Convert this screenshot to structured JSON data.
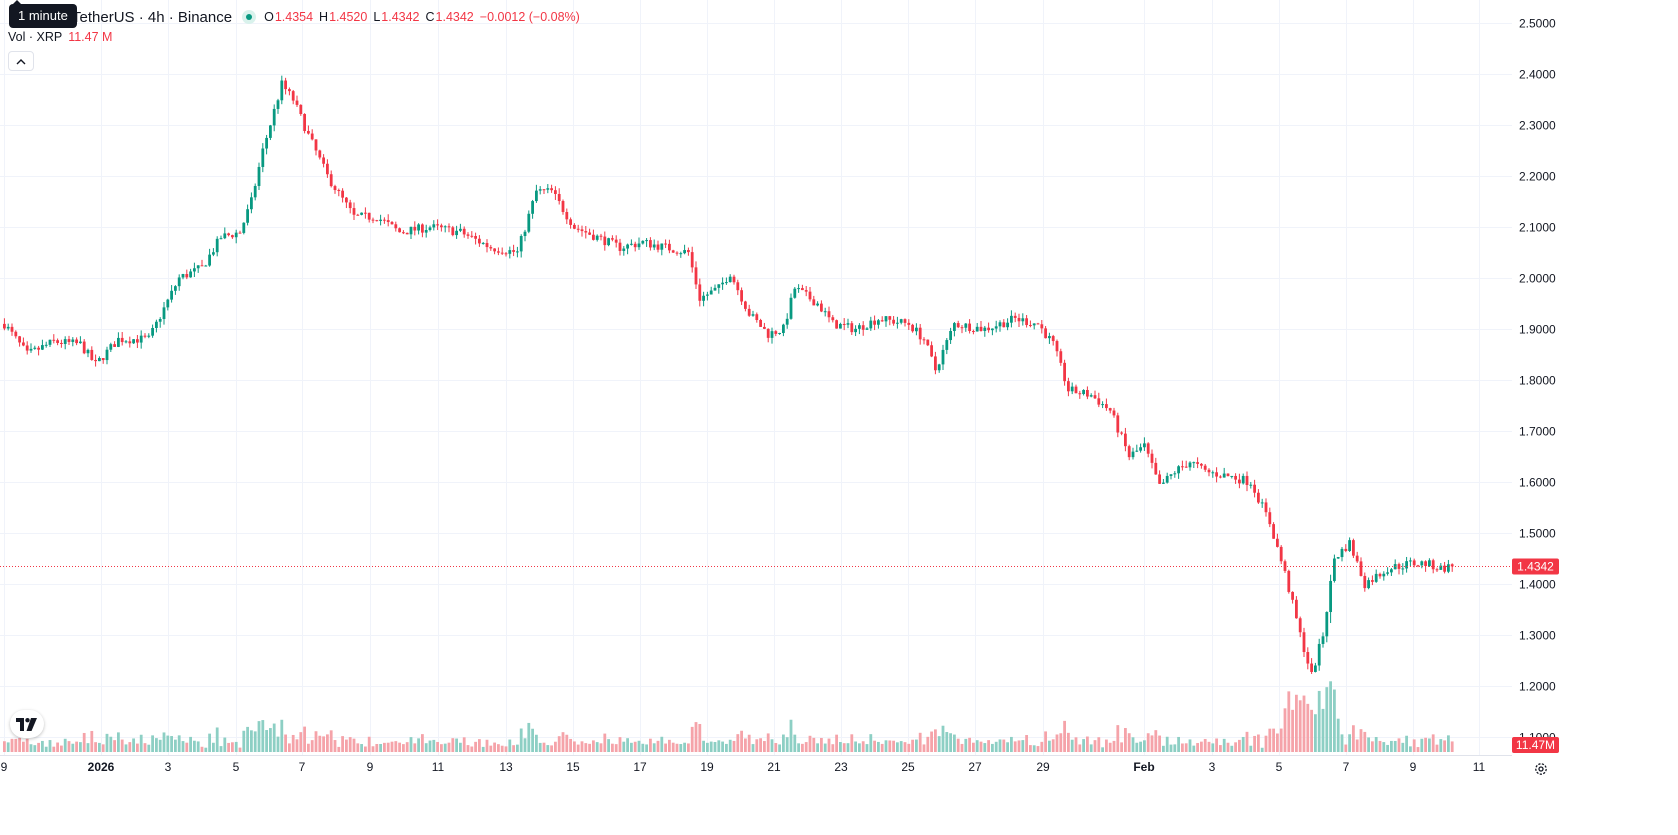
{
  "header": {
    "tooltip": "1 minute",
    "symbol": "TetherUS · 4h · Binance",
    "ohlc": {
      "o_label": "O",
      "o": "1.4354",
      "h_label": "H",
      "h": "1.4520",
      "l_label": "L",
      "l": "1.4342",
      "c_label": "C",
      "c": "1.4342",
      "change": "−0.0012 (−0.08%)"
    },
    "volume": {
      "label": "Vol · XRP",
      "value": "11.47 M"
    }
  },
  "colors": {
    "up": "#089981",
    "down": "#f23645",
    "vol_up": "#8dcfc4",
    "vol_down": "#f5a3a9",
    "grid": "#f0f3fa"
  },
  "chart_data": {
    "type": "candlestick",
    "interval": "4h",
    "y_range": [
      1.07,
      2.52
    ],
    "y_ticks": [
      "2.5000",
      "2.4000",
      "2.3000",
      "2.2000",
      "2.1000",
      "2.0000",
      "1.9000",
      "1.8000",
      "1.7000",
      "1.6000",
      "1.5000",
      "1.4000",
      "1.3000",
      "1.2000",
      "1.1000"
    ],
    "x_ticks": [
      "9",
      "2026",
      "3",
      "5",
      "7",
      "9",
      "11",
      "13",
      "15",
      "17",
      "19",
      "21",
      "23",
      "25",
      "27",
      "29",
      "Feb",
      "3",
      "5",
      "7",
      "9",
      "11"
    ],
    "last_price": "1.4342",
    "last_volume": "11.47M",
    "close_path": [
      {
        "bar": 0,
        "price": 1.91
      },
      {
        "bar": 6,
        "price": 1.85
      },
      {
        "bar": 13,
        "price": 1.875
      },
      {
        "bar": 20,
        "price": 1.87
      },
      {
        "bar": 24,
        "price": 1.83
      },
      {
        "bar": 30,
        "price": 1.88
      },
      {
        "bar": 38,
        "price": 1.88
      },
      {
        "bar": 46,
        "price": 2.0
      },
      {
        "bar": 52,
        "price": 2.02
      },
      {
        "bar": 57,
        "price": 2.08
      },
      {
        "bar": 62,
        "price": 2.09
      },
      {
        "bar": 65,
        "price": 2.15
      },
      {
        "bar": 68,
        "price": 2.25
      },
      {
        "bar": 73,
        "price": 2.38
      },
      {
        "bar": 76,
        "price": 2.35
      },
      {
        "bar": 80,
        "price": 2.28
      },
      {
        "bar": 85,
        "price": 2.2
      },
      {
        "bar": 92,
        "price": 2.12
      },
      {
        "bar": 98,
        "price": 2.12
      },
      {
        "bar": 104,
        "price": 2.09
      },
      {
        "bar": 112,
        "price": 2.1
      },
      {
        "bar": 120,
        "price": 2.09
      },
      {
        "bar": 128,
        "price": 2.06
      },
      {
        "bar": 135,
        "price": 2.05
      },
      {
        "bar": 140,
        "price": 2.17
      },
      {
        "bar": 144,
        "price": 2.17
      },
      {
        "bar": 150,
        "price": 2.1
      },
      {
        "bar": 156,
        "price": 2.08
      },
      {
        "bar": 162,
        "price": 2.06
      },
      {
        "bar": 168,
        "price": 2.07
      },
      {
        "bar": 174,
        "price": 2.06
      },
      {
        "bar": 180,
        "price": 2.05
      },
      {
        "bar": 183,
        "price": 1.96
      },
      {
        "bar": 188,
        "price": 1.98
      },
      {
        "bar": 191,
        "price": 2.01
      },
      {
        "bar": 196,
        "price": 1.93
      },
      {
        "bar": 201,
        "price": 1.89
      },
      {
        "bar": 205,
        "price": 1.9
      },
      {
        "bar": 208,
        "price": 1.98
      },
      {
        "bar": 214,
        "price": 1.95
      },
      {
        "bar": 218,
        "price": 1.91
      },
      {
        "bar": 224,
        "price": 1.9
      },
      {
        "bar": 230,
        "price": 1.92
      },
      {
        "bar": 238,
        "price": 1.91
      },
      {
        "bar": 242,
        "price": 1.88
      },
      {
        "bar": 245,
        "price": 1.82
      },
      {
        "bar": 250,
        "price": 1.91
      },
      {
        "bar": 258,
        "price": 1.9
      },
      {
        "bar": 266,
        "price": 1.92
      },
      {
        "bar": 272,
        "price": 1.91
      },
      {
        "bar": 276,
        "price": 1.87
      },
      {
        "bar": 280,
        "price": 1.78
      },
      {
        "bar": 286,
        "price": 1.77
      },
      {
        "bar": 291,
        "price": 1.74
      },
      {
        "bar": 296,
        "price": 1.65
      },
      {
        "bar": 300,
        "price": 1.67
      },
      {
        "bar": 304,
        "price": 1.59
      },
      {
        "bar": 308,
        "price": 1.62
      },
      {
        "bar": 312,
        "price": 1.64
      },
      {
        "bar": 316,
        "price": 1.62
      },
      {
        "bar": 323,
        "price": 1.61
      },
      {
        "bar": 328,
        "price": 1.6
      },
      {
        "bar": 333,
        "price": 1.52
      },
      {
        "bar": 337,
        "price": 1.42
      },
      {
        "bar": 341,
        "price": 1.3
      },
      {
        "bar": 344,
        "price": 1.22
      },
      {
        "bar": 347,
        "price": 1.3
      },
      {
        "bar": 350,
        "price": 1.45
      },
      {
        "bar": 354,
        "price": 1.48
      },
      {
        "bar": 358,
        "price": 1.4
      },
      {
        "bar": 364,
        "price": 1.43
      },
      {
        "bar": 370,
        "price": 1.44
      },
      {
        "bar": 374,
        "price": 1.44
      },
      {
        "bar": 378,
        "price": 1.43
      },
      {
        "bar": 381,
        "price": 1.4342
      }
    ]
  }
}
